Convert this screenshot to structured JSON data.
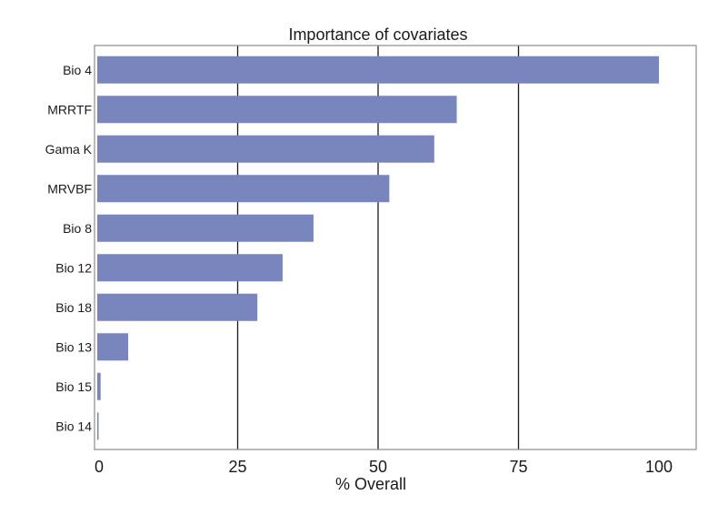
{
  "chart_data": {
    "type": "bar",
    "orientation": "horizontal",
    "title": "Importance of covariates",
    "xlabel": "% Overall",
    "ylabel": "",
    "categories": [
      "Bio 4",
      "MRRTF",
      "Gama K",
      "MRVBF",
      "Bio 8",
      "Bio 12",
      "Bio 18",
      "Bio 13",
      "Bio 15",
      "Bio 14"
    ],
    "values": [
      100,
      64,
      60,
      52,
      38.5,
      33,
      28.5,
      5.5,
      0.6,
      0.2
    ],
    "xlim": [
      0,
      100
    ],
    "xticks": [
      0,
      25,
      50,
      75,
      100
    ],
    "xtick_labels": [
      "0",
      "25",
      "50",
      "75",
      "100"
    ],
    "grid": "vertical major lines",
    "legend": "none",
    "colors": {
      "bar": "#7886bd",
      "grid": "#1a1a1a",
      "frame": "#8c8c8c"
    }
  }
}
